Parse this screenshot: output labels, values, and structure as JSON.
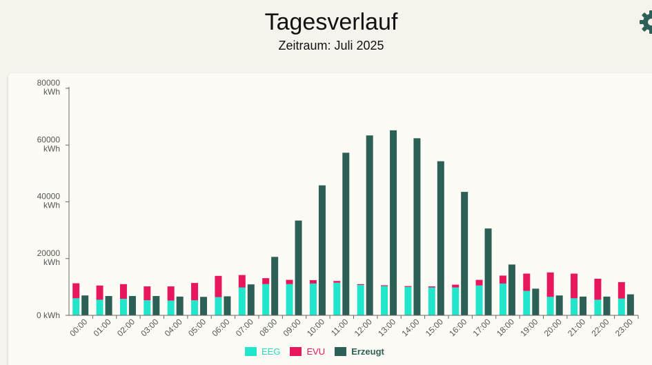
{
  "header": {
    "title": "Tagesverlauf",
    "subtitle": "Zeitraum: Juli 2025",
    "settings_icon": "gear-icon"
  },
  "colors": {
    "eeg": "#21e6cc",
    "evu": "#e8175d",
    "erzeugt": "#2c5f55",
    "axis": "#666666"
  },
  "chart_data": {
    "type": "bar",
    "title": "Tagesverlauf",
    "subtitle": "Zeitraum: Juli 2025",
    "categories": [
      "00:00",
      "01:00",
      "02:00",
      "03:00",
      "04:00",
      "05:00",
      "06:00",
      "07:00",
      "08:00",
      "09:00",
      "10:00",
      "11:00",
      "12:00",
      "13:00",
      "14:00",
      "15:00",
      "16:00",
      "17:00",
      "18:00",
      "19:00",
      "20:00",
      "21:00",
      "22:00",
      "23:00"
    ],
    "y_tick_labels": [
      "0 kWh",
      "20000\nkWh",
      "40000\nkWh",
      "60000\nkWh",
      "80000\nkWh"
    ],
    "ylim": [
      0,
      80000
    ],
    "stacked_series": [
      "EEG",
      "EVU"
    ],
    "series": [
      {
        "name": "EEG",
        "color": "#21e6cc",
        "stack": "verbrauch",
        "values": [
          6000,
          5500,
          5800,
          5300,
          5200,
          5300,
          6400,
          9800,
          11000,
          11000,
          11200,
          11500,
          10700,
          10300,
          10000,
          9800,
          9800,
          10500,
          11200,
          8600,
          6500,
          6000,
          5500,
          5900
        ]
      },
      {
        "name": "EVU",
        "color": "#e8175d",
        "stack": "verbrauch",
        "values": [
          5300,
          5000,
          5200,
          4900,
          5000,
          6100,
          7500,
          4400,
          2100,
          1500,
          1200,
          600,
          300,
          300,
          300,
          400,
          1000,
          2000,
          2800,
          6100,
          8600,
          8700,
          7400,
          5800
        ]
      },
      {
        "name": "Erzeugt",
        "color": "#2c5f55",
        "stack": "erzeugt",
        "values": [
          7000,
          6800,
          6800,
          6800,
          6600,
          6500,
          6700,
          10900,
          20600,
          33400,
          45800,
          57300,
          63400,
          65200,
          62400,
          54300,
          43500,
          30600,
          17900,
          9400,
          7000,
          6600,
          6600,
          7400
        ]
      }
    ],
    "legend": {
      "position": "bottom",
      "items": [
        "EEG",
        "EVU",
        "Erzeugt"
      ]
    },
    "grid": false
  }
}
